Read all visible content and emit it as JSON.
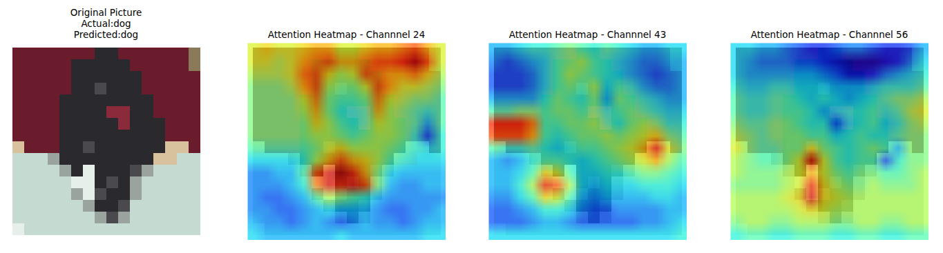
{
  "chart_data": [
    {
      "type": "image",
      "title": [
        "Original Picture",
        "Actual:dog",
        "Predicted:dog"
      ],
      "pixels": [
        [
          "#6b1c2c",
          "#6b1c2c",
          "#6b1c2c",
          "#6b1c2c",
          "#6b1c2c",
          "#6b1c2c",
          "#6b1c2c",
          "#2a2a2e",
          "#2a2a2e",
          "#6b1c2c",
          "#6b1c2c",
          "#6b1c2c",
          "#6b1c2c",
          "#6b1c2c",
          "#6b1c2c",
          "#8a7a5a"
        ],
        [
          "#6b1c2c",
          "#6b1c2c",
          "#6b1c2c",
          "#6b1c2c",
          "#6b1c2c",
          "#2a2a2e",
          "#2a2a2e",
          "#2a2a2e",
          "#2a2a2e",
          "#2a2a2e",
          "#6b1c2c",
          "#6b1c2c",
          "#6b1c2c",
          "#6b1c2c",
          "#6b1c2c",
          "#8a7a5a"
        ],
        [
          "#6b1c2c",
          "#6b1c2c",
          "#6b1c2c",
          "#6b1c2c",
          "#6b1c2c",
          "#2a2a2e",
          "#2a2a2e",
          "#2a2a2e",
          "#2a2a2e",
          "#2a2a2e",
          "#2a2a2e",
          "#6b1c2c",
          "#6b1c2c",
          "#6b1c2c",
          "#6b1c2c",
          "#6b1c2c"
        ],
        [
          "#6b1c2c",
          "#6b1c2c",
          "#6b1c2c",
          "#6b1c2c",
          "#6b1c2c",
          "#2a2a2e",
          "#2a2a2e",
          "#4a4a4e",
          "#2a2a2e",
          "#2a2a2e",
          "#2a2a2e",
          "#6b1c2c",
          "#6b1c2c",
          "#6b1c2c",
          "#6b1c2c",
          "#6b1c2c"
        ],
        [
          "#6b1c2c",
          "#6b1c2c",
          "#6b1c2c",
          "#6b1c2c",
          "#2a2a2e",
          "#2a2a2e",
          "#2a2a2e",
          "#2a2a2e",
          "#2a2a2e",
          "#2a2a2e",
          "#2a2a2e",
          "#2a2a2e",
          "#6b1c2c",
          "#6b1c2c",
          "#6b1c2c",
          "#6b1c2c"
        ],
        [
          "#6b1c2c",
          "#6b1c2c",
          "#6b1c2c",
          "#6b1c2c",
          "#2a2a2e",
          "#2a2a2e",
          "#2a2a2e",
          "#2a2a2e",
          "#8a2a3a",
          "#8a2a3a",
          "#2a2a2e",
          "#2a2a2e",
          "#6b1c2c",
          "#6b1c2c",
          "#6b1c2c",
          "#6b1c2c"
        ],
        [
          "#6b1c2c",
          "#6b1c2c",
          "#6b1c2c",
          "#6b1c2c",
          "#2a2a2e",
          "#2a2a2e",
          "#2a2a2e",
          "#2a2a2e",
          "#2a2a2e",
          "#8a2a3a",
          "#2a2a2e",
          "#2a2a2e",
          "#2a2a2e",
          "#6b1c2c",
          "#6b1c2c",
          "#6b1c2c"
        ],
        [
          "#6b1c2c",
          "#6b1c2c",
          "#6b1c2c",
          "#6b1c2c",
          "#2a2a2e",
          "#2a2a2e",
          "#2a2a2e",
          "#2a2a2e",
          "#2a2a2e",
          "#2a2a2e",
          "#2a2a2e",
          "#2a2a2e",
          "#2a2a2e",
          "#6b1c2c",
          "#6b1c2c",
          "#6b1c2c"
        ],
        [
          "#d8c29e",
          "#6b1c2c",
          "#6b1c2c",
          "#6b1c2c",
          "#2a2a2e",
          "#2a2a2e",
          "#4a4a4e",
          "#2a2a2e",
          "#2a2a2e",
          "#2a2a2e",
          "#2a2a2e",
          "#2a2a2e",
          "#2a2a2e",
          "#d8c29e",
          "#d8c29e",
          "#6b1c2c"
        ],
        [
          "#c5dbd2",
          "#c5dbd2",
          "#c5dbd2",
          "#9aa39e",
          "#2a2a2e",
          "#2a2a2e",
          "#2a2a2e",
          "#2a2a2e",
          "#2a2a2e",
          "#2a2a2e",
          "#2a2a2e",
          "#2a2a2e",
          "#d8c29e",
          "#d8c29e",
          "#c5dbd2",
          "#c5dbd2"
        ],
        [
          "#c5dbd2",
          "#c5dbd2",
          "#c5dbd2",
          "#c5dbd2",
          "#9aa39e",
          "#2a2a2e",
          "#e6efe9",
          "#2a2a2e",
          "#2a2a2e",
          "#2a2a2e",
          "#4a4a4e",
          "#9aa39e",
          "#c5dbd2",
          "#c5dbd2",
          "#c5dbd2",
          "#c5dbd2"
        ],
        [
          "#c5dbd2",
          "#c5dbd2",
          "#c5dbd2",
          "#c5dbd2",
          "#c5dbd2",
          "#e6efe9",
          "#e6efe9",
          "#2a2a2e",
          "#4a4a4e",
          "#2a2a2e",
          "#9aa39e",
          "#c5dbd2",
          "#c5dbd2",
          "#c5dbd2",
          "#c5dbd2",
          "#c5dbd2"
        ],
        [
          "#c5dbd2",
          "#c5dbd2",
          "#c5dbd2",
          "#c5dbd2",
          "#c5dbd2",
          "#9aa39e",
          "#e6efe9",
          "#4a4a4e",
          "#2a2a2e",
          "#2a2a2e",
          "#9aa39e",
          "#c5dbd2",
          "#c5dbd2",
          "#c5dbd2",
          "#c5dbd2",
          "#c5dbd2"
        ],
        [
          "#c5dbd2",
          "#c5dbd2",
          "#c5dbd2",
          "#c5dbd2",
          "#c5dbd2",
          "#c5dbd2",
          "#9aa39e",
          "#2a2a2e",
          "#2a2a2e",
          "#4a4a4e",
          "#c5dbd2",
          "#c5dbd2",
          "#c5dbd2",
          "#c5dbd2",
          "#c5dbd2",
          "#c5dbd2"
        ],
        [
          "#c5dbd2",
          "#c5dbd2",
          "#c5dbd2",
          "#c5dbd2",
          "#c5dbd2",
          "#c5dbd2",
          "#c5dbd2",
          "#9aa39e",
          "#4a4a4e",
          "#9aa39e",
          "#c5dbd2",
          "#c5dbd2",
          "#c5dbd2",
          "#c5dbd2",
          "#c5dbd2",
          "#c5dbd2"
        ],
        [
          "#e6efe9",
          "#c5dbd2",
          "#c5dbd2",
          "#c5dbd2",
          "#c5dbd2",
          "#c5dbd2",
          "#c5dbd2",
          "#c5dbd2",
          "#c5dbd2",
          "#c5dbd2",
          "#c5dbd2",
          "#c5dbd2",
          "#c5dbd2",
          "#c5dbd2",
          "#c5dbd2",
          "#c5dbd2"
        ]
      ]
    },
    {
      "type": "heatmap",
      "title": "Attention Heatmap - Channnel 24",
      "zlim": [
        0,
        1
      ],
      "cells": [
        [
          0.6,
          0.65,
          0.6,
          0.6,
          0.65,
          0.7,
          0.7,
          0.6,
          0.6,
          0.65,
          0.7,
          0.7,
          0.75,
          0.8,
          0.7,
          0.6
        ],
        [
          0.6,
          0.6,
          0.55,
          0.6,
          0.7,
          0.75,
          0.8,
          0.7,
          0.7,
          0.75,
          0.8,
          0.8,
          0.85,
          0.95,
          0.8,
          0.6
        ],
        [
          0.55,
          0.55,
          0.55,
          0.6,
          0.75,
          0.8,
          0.65,
          0.55,
          0.6,
          0.8,
          0.75,
          0.7,
          0.7,
          0.75,
          0.65,
          0.55
        ],
        [
          0.5,
          0.5,
          0.5,
          0.55,
          0.7,
          0.8,
          0.55,
          0.5,
          0.5,
          0.6,
          0.8,
          0.7,
          0.6,
          0.6,
          0.55,
          0.5
        ],
        [
          0.5,
          0.5,
          0.5,
          0.5,
          0.6,
          0.75,
          0.5,
          0.45,
          0.45,
          0.5,
          0.75,
          0.6,
          0.55,
          0.5,
          0.5,
          0.45
        ],
        [
          0.5,
          0.5,
          0.5,
          0.5,
          0.55,
          0.7,
          0.5,
          0.4,
          0.4,
          0.45,
          0.7,
          0.55,
          0.5,
          0.45,
          0.4,
          0.45
        ],
        [
          0.5,
          0.5,
          0.5,
          0.5,
          0.5,
          0.65,
          0.55,
          0.45,
          0.4,
          0.45,
          0.6,
          0.55,
          0.5,
          0.45,
          0.3,
          0.45
        ],
        [
          0.5,
          0.5,
          0.5,
          0.5,
          0.5,
          0.55,
          0.55,
          0.5,
          0.45,
          0.5,
          0.55,
          0.55,
          0.5,
          0.4,
          0.2,
          0.4
        ],
        [
          0.45,
          0.45,
          0.45,
          0.45,
          0.45,
          0.5,
          0.6,
          0.65,
          0.55,
          0.55,
          0.55,
          0.5,
          0.45,
          0.4,
          0.35,
          0.4
        ],
        [
          0.35,
          0.35,
          0.35,
          0.35,
          0.4,
          0.55,
          0.7,
          0.8,
          0.7,
          0.65,
          0.55,
          0.45,
          0.4,
          0.35,
          0.35,
          0.35
        ],
        [
          0.25,
          0.25,
          0.3,
          0.3,
          0.45,
          0.8,
          0.9,
          0.95,
          0.85,
          0.7,
          0.5,
          0.35,
          0.3,
          0.3,
          0.3,
          0.3
        ],
        [
          0.25,
          0.25,
          0.25,
          0.3,
          0.4,
          0.75,
          0.9,
          0.85,
          0.9,
          0.8,
          0.5,
          0.3,
          0.25,
          0.25,
          0.3,
          0.3
        ],
        [
          0.25,
          0.2,
          0.2,
          0.25,
          0.3,
          0.45,
          0.55,
          0.5,
          0.45,
          0.4,
          0.3,
          0.25,
          0.25,
          0.25,
          0.25,
          0.25
        ],
        [
          0.25,
          0.25,
          0.2,
          0.2,
          0.25,
          0.3,
          0.35,
          0.3,
          0.3,
          0.3,
          0.25,
          0.2,
          0.2,
          0.25,
          0.25,
          0.3
        ],
        [
          0.3,
          0.25,
          0.25,
          0.2,
          0.25,
          0.3,
          0.25,
          0.2,
          0.25,
          0.3,
          0.25,
          0.25,
          0.2,
          0.25,
          0.3,
          0.3
        ],
        [
          0.35,
          0.3,
          0.3,
          0.3,
          0.3,
          0.3,
          0.3,
          0.35,
          0.3,
          0.3,
          0.3,
          0.3,
          0.3,
          0.3,
          0.35,
          0.35
        ]
      ]
    },
    {
      "type": "heatmap",
      "title": "Attention Heatmap - Channnel 43",
      "zlim": [
        0,
        1
      ],
      "cells": [
        [
          0.3,
          0.3,
          0.35,
          0.4,
          0.4,
          0.45,
          0.5,
          0.45,
          0.4,
          0.45,
          0.4,
          0.35,
          0.3,
          0.3,
          0.35,
          0.35
        ],
        [
          0.25,
          0.2,
          0.25,
          0.3,
          0.35,
          0.45,
          0.5,
          0.55,
          0.45,
          0.4,
          0.35,
          0.3,
          0.25,
          0.25,
          0.3,
          0.3
        ],
        [
          0.2,
          0.2,
          0.2,
          0.25,
          0.35,
          0.45,
          0.55,
          0.5,
          0.45,
          0.4,
          0.35,
          0.3,
          0.25,
          0.2,
          0.25,
          0.3
        ],
        [
          0.2,
          0.2,
          0.2,
          0.25,
          0.35,
          0.45,
          0.5,
          0.45,
          0.55,
          0.35,
          0.45,
          0.4,
          0.3,
          0.25,
          0.25,
          0.3
        ],
        [
          0.3,
          0.3,
          0.3,
          0.3,
          0.4,
          0.5,
          0.45,
          0.4,
          0.5,
          0.3,
          0.5,
          0.45,
          0.4,
          0.35,
          0.3,
          0.3
        ],
        [
          0.45,
          0.45,
          0.5,
          0.5,
          0.45,
          0.5,
          0.5,
          0.45,
          0.5,
          0.4,
          0.45,
          0.5,
          0.45,
          0.4,
          0.35,
          0.35
        ],
        [
          0.85,
          0.85,
          0.85,
          0.75,
          0.45,
          0.45,
          0.5,
          0.5,
          0.55,
          0.45,
          0.4,
          0.5,
          0.55,
          0.5,
          0.4,
          0.4
        ],
        [
          0.8,
          0.8,
          0.8,
          0.7,
          0.45,
          0.4,
          0.45,
          0.5,
          0.5,
          0.55,
          0.5,
          0.55,
          0.6,
          0.65,
          0.5,
          0.45
        ],
        [
          0.45,
          0.4,
          0.4,
          0.45,
          0.4,
          0.35,
          0.4,
          0.45,
          0.45,
          0.5,
          0.55,
          0.6,
          0.7,
          0.9,
          0.6,
          0.5
        ],
        [
          0.3,
          0.25,
          0.3,
          0.4,
          0.45,
          0.45,
          0.4,
          0.35,
          0.4,
          0.45,
          0.5,
          0.55,
          0.6,
          0.7,
          0.55,
          0.45
        ],
        [
          0.3,
          0.3,
          0.35,
          0.45,
          0.65,
          0.6,
          0.45,
          0.35,
          0.35,
          0.4,
          0.4,
          0.45,
          0.5,
          0.5,
          0.45,
          0.4
        ],
        [
          0.3,
          0.3,
          0.4,
          0.55,
          0.85,
          0.8,
          0.55,
          0.35,
          0.3,
          0.35,
          0.35,
          0.35,
          0.4,
          0.4,
          0.4,
          0.35
        ],
        [
          0.25,
          0.25,
          0.35,
          0.45,
          0.65,
          0.6,
          0.45,
          0.3,
          0.25,
          0.3,
          0.3,
          0.3,
          0.3,
          0.35,
          0.35,
          0.3
        ],
        [
          0.2,
          0.2,
          0.25,
          0.3,
          0.4,
          0.4,
          0.35,
          0.25,
          0.2,
          0.2,
          0.25,
          0.25,
          0.25,
          0.25,
          0.3,
          0.3
        ],
        [
          0.2,
          0.2,
          0.2,
          0.25,
          0.3,
          0.3,
          0.25,
          0.2,
          0.2,
          0.2,
          0.2,
          0.2,
          0.25,
          0.25,
          0.3,
          0.35
        ],
        [
          0.35,
          0.35,
          0.35,
          0.35,
          0.35,
          0.35,
          0.35,
          0.35,
          0.35,
          0.35,
          0.35,
          0.35,
          0.35,
          0.35,
          0.35,
          0.4
        ]
      ]
    },
    {
      "type": "heatmap",
      "title": "Attention Heatmap - Channnel 56",
      "zlim": [
        0,
        1
      ],
      "cells": [
        [
          0.35,
          0.35,
          0.3,
          0.3,
          0.25,
          0.2,
          0.15,
          0.15,
          0.2,
          0.25,
          0.25,
          0.2,
          0.15,
          0.15,
          0.2,
          0.3
        ],
        [
          0.35,
          0.3,
          0.25,
          0.25,
          0.25,
          0.2,
          0.2,
          0.15,
          0.1,
          0.05,
          0.05,
          0.05,
          0.1,
          0.15,
          0.25,
          0.35
        ],
        [
          0.35,
          0.3,
          0.3,
          0.3,
          0.3,
          0.3,
          0.3,
          0.25,
          0.2,
          0.1,
          0.1,
          0.15,
          0.25,
          0.3,
          0.35,
          0.4
        ],
        [
          0.4,
          0.35,
          0.35,
          0.4,
          0.4,
          0.35,
          0.35,
          0.35,
          0.3,
          0.3,
          0.3,
          0.35,
          0.4,
          0.4,
          0.4,
          0.45
        ],
        [
          0.45,
          0.4,
          0.4,
          0.45,
          0.45,
          0.4,
          0.35,
          0.4,
          0.35,
          0.3,
          0.35,
          0.4,
          0.45,
          0.5,
          0.5,
          0.55
        ],
        [
          0.45,
          0.4,
          0.4,
          0.45,
          0.45,
          0.45,
          0.4,
          0.3,
          0.35,
          0.4,
          0.4,
          0.45,
          0.4,
          0.45,
          0.55,
          0.6
        ],
        [
          0.5,
          0.45,
          0.45,
          0.5,
          0.5,
          0.45,
          0.4,
          0.4,
          0.2,
          0.35,
          0.4,
          0.45,
          0.35,
          0.4,
          0.5,
          0.55
        ],
        [
          0.55,
          0.5,
          0.45,
          0.5,
          0.5,
          0.5,
          0.45,
          0.45,
          0.35,
          0.4,
          0.45,
          0.4,
          0.4,
          0.45,
          0.5,
          0.5
        ],
        [
          0.6,
          0.5,
          0.45,
          0.45,
          0.5,
          0.5,
          0.65,
          0.5,
          0.45,
          0.4,
          0.45,
          0.5,
          0.45,
          0.3,
          0.5,
          0.5
        ],
        [
          0.55,
          0.5,
          0.45,
          0.45,
          0.5,
          0.6,
          0.9,
          0.6,
          0.45,
          0.4,
          0.45,
          0.45,
          0.2,
          0.4,
          0.5,
          0.5
        ],
        [
          0.55,
          0.5,
          0.5,
          0.5,
          0.55,
          0.6,
          0.7,
          0.6,
          0.5,
          0.45,
          0.5,
          0.5,
          0.45,
          0.45,
          0.5,
          0.55
        ],
        [
          0.5,
          0.5,
          0.5,
          0.5,
          0.55,
          0.6,
          0.85,
          0.65,
          0.55,
          0.5,
          0.5,
          0.55,
          0.5,
          0.5,
          0.5,
          0.55
        ],
        [
          0.55,
          0.55,
          0.55,
          0.55,
          0.6,
          0.65,
          0.9,
          0.65,
          0.6,
          0.55,
          0.55,
          0.55,
          0.55,
          0.55,
          0.55,
          0.55
        ],
        [
          0.55,
          0.55,
          0.55,
          0.55,
          0.55,
          0.6,
          0.65,
          0.6,
          0.55,
          0.55,
          0.55,
          0.55,
          0.55,
          0.55,
          0.55,
          0.55
        ],
        [
          0.5,
          0.55,
          0.55,
          0.5,
          0.5,
          0.55,
          0.55,
          0.55,
          0.5,
          0.5,
          0.55,
          0.55,
          0.5,
          0.5,
          0.55,
          0.55
        ],
        [
          0.4,
          0.45,
          0.45,
          0.4,
          0.4,
          0.45,
          0.45,
          0.45,
          0.4,
          0.4,
          0.45,
          0.45,
          0.4,
          0.4,
          0.45,
          0.45
        ]
      ]
    }
  ]
}
